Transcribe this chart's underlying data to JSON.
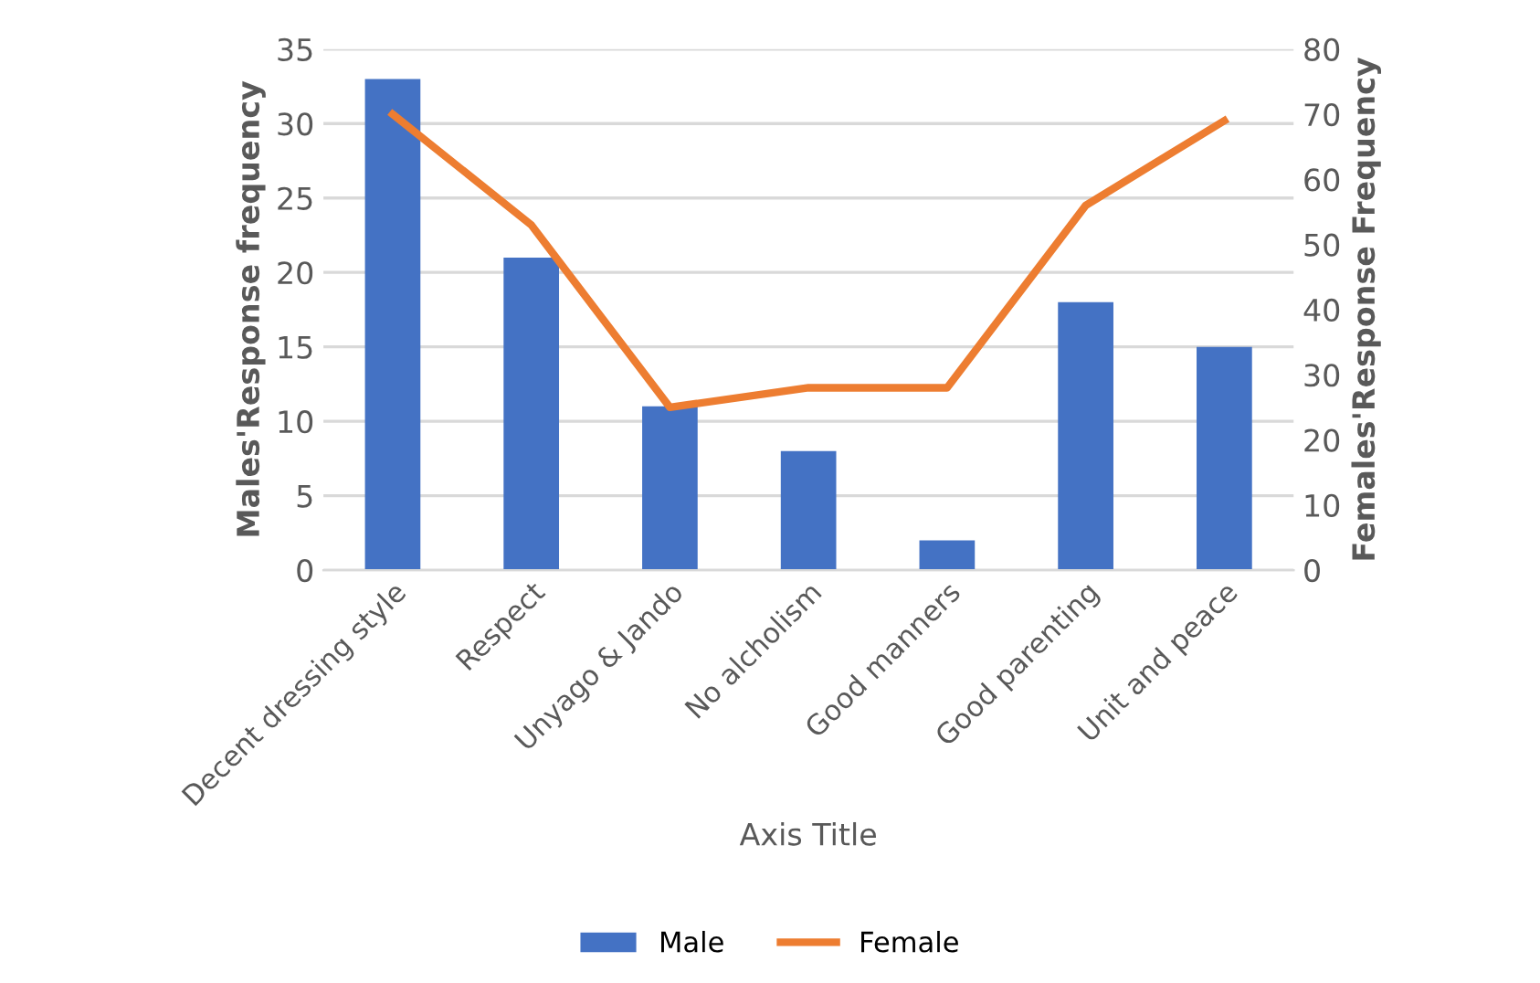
{
  "chart_data": {
    "type": "bar",
    "xlabel": "Axis Title",
    "ylabel": "Males'Response frequency",
    "y2label": "Females'Response Frequency",
    "categories": [
      "Decent dressing style",
      "Respect",
      "Unyago & Jando",
      "No alcholism",
      "Good manners",
      "Good parenting",
      "Unit and peace"
    ],
    "series": [
      {
        "name": "Male",
        "color": "#4472c4",
        "values": [
          33,
          21,
          11,
          8,
          2,
          18,
          15
        ]
      },
      {
        "name": "Female",
        "type": "line",
        "axis": "y2",
        "color": "#ed7d31",
        "values": [
          70,
          53,
          25,
          28,
          28,
          56,
          69
        ]
      }
    ],
    "ylim": [
      0,
      35
    ],
    "yticks": [
      0,
      5,
      10,
      15,
      20,
      25,
      30,
      35
    ],
    "y2lim": [
      0,
      80
    ],
    "y2ticks": [
      0,
      10,
      20,
      30,
      40,
      50,
      60,
      70,
      80
    ],
    "grid": "y",
    "legend": "bottom",
    "marker": "none"
  }
}
